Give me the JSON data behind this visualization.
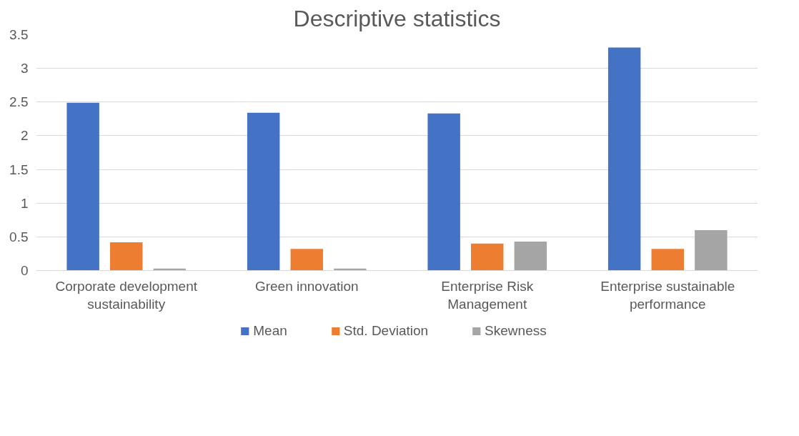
{
  "chart_data": {
    "type": "bar",
    "title": "Descriptive statistics",
    "categories": [
      "Corporate development sustainability",
      "Green innovation",
      "Enterprise Risk Management",
      "Enterprise sustainable performance"
    ],
    "series": [
      {
        "name": "Mean",
        "color": "#4472c4",
        "values": [
          2.49,
          2.34,
          2.33,
          3.31
        ]
      },
      {
        "name": "Std. Deviation",
        "color": "#ed7d31",
        "values": [
          0.42,
          0.32,
          0.4,
          0.32
        ]
      },
      {
        "name": "Skewness",
        "color": "#a5a5a5",
        "values": [
          0.03,
          0.03,
          0.43,
          0.6
        ]
      }
    ],
    "ylim": [
      0,
      3.5
    ],
    "yticks": [
      0,
      0.5,
      1,
      1.5,
      2,
      2.5,
      3,
      3.5
    ],
    "grid": "y",
    "legend": "bottom"
  }
}
